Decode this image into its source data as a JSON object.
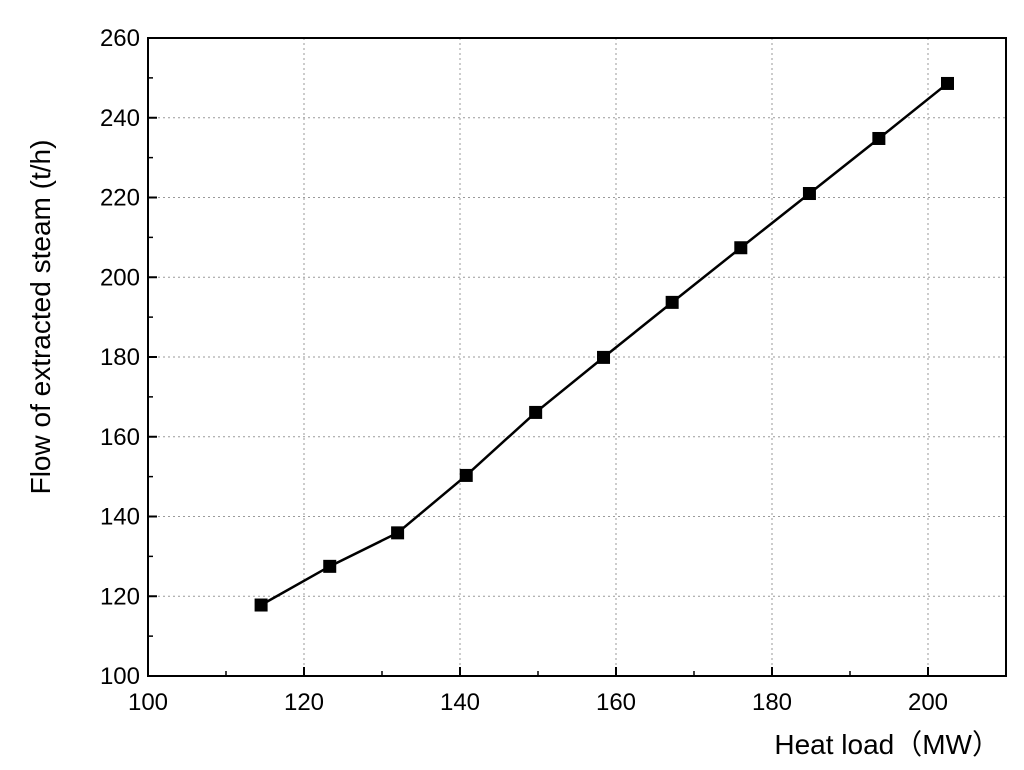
{
  "chart_data": {
    "type": "line",
    "xlabel": "Heat load（MW）",
    "ylabel": "Flow of extracted steam (t/h)",
    "xlim": [
      100,
      210
    ],
    "ylim": [
      100,
      260
    ],
    "x_ticks": [
      100,
      120,
      140,
      160,
      180,
      200
    ],
    "y_ticks": [
      100,
      120,
      140,
      160,
      180,
      200,
      220,
      240,
      260
    ],
    "x_tick_labels": [
      "100",
      "120",
      "140",
      "160",
      "180",
      "200"
    ],
    "y_tick_labels": [
      "100",
      "120",
      "140",
      "160",
      "180",
      "200",
      "220",
      "240",
      "260"
    ],
    "grid": true,
    "marker": "square",
    "series": [
      {
        "x": [
          114.5,
          123.3,
          132.0,
          140.8,
          149.7,
          158.4,
          167.2,
          176.0,
          184.8,
          193.7,
          202.5
        ],
        "y": [
          117.8,
          127.5,
          135.9,
          150.3,
          166.1,
          179.9,
          193.7,
          207.4,
          221.0,
          234.8,
          248.6
        ]
      }
    ]
  }
}
